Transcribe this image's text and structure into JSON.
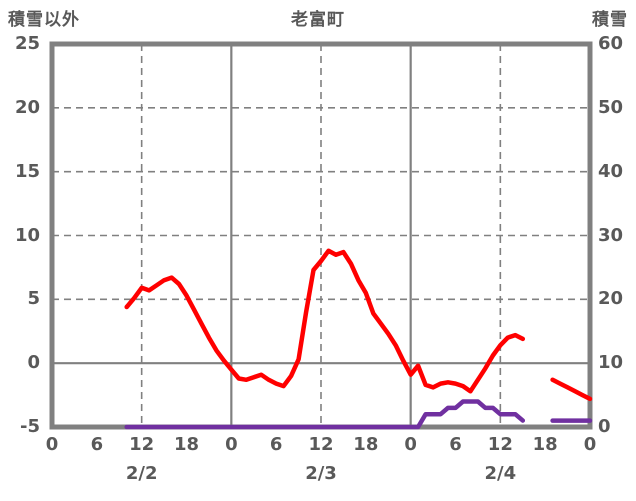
{
  "header": {
    "left_axis_label": "積雪以外",
    "title": "老富町",
    "right_axis_label": "積雪"
  },
  "colors": {
    "temp_line": "#ff0000",
    "snow_line": "#7030a0",
    "grid": "#808080",
    "text": "#595959"
  },
  "chart_data": {
    "type": "line",
    "title": "老富町",
    "left_axis": {
      "label": "積雪以外",
      "min": -5,
      "max": 25,
      "ticks": [
        25,
        20,
        15,
        10,
        5,
        0,
        -5
      ]
    },
    "right_axis": {
      "label": "積雪",
      "min": 0,
      "max": 60,
      "ticks": [
        60,
        50,
        40,
        30,
        20,
        10,
        0
      ]
    },
    "x_hours_span": 72,
    "x_tick_hours": [
      0,
      6,
      12,
      18,
      24,
      30,
      36,
      42,
      48,
      54,
      60,
      66,
      72
    ],
    "x_tick_labels": [
      "0",
      "6",
      "12",
      "18",
      "0",
      "6",
      "12",
      "18",
      "0",
      "6",
      "12",
      "18",
      "0"
    ],
    "date_labels": [
      {
        "label": "2/2",
        "center_hour": 12
      },
      {
        "label": "2/3",
        "center_hour": 36
      },
      {
        "label": "2/4",
        "center_hour": 60
      }
    ],
    "grid": {
      "h_dashed_at_left_values": [
        20,
        15,
        10,
        5
      ],
      "h_solid_at_left_values": [
        0
      ],
      "v_dashed_at_hours": [
        12,
        36,
        60
      ],
      "v_solid_at_hours": [
        24,
        48
      ]
    },
    "series": [
      {
        "name": "積雪以外",
        "color": "#ff0000",
        "axis": "left",
        "step_hours": 1,
        "values": [
          null,
          null,
          null,
          null,
          null,
          null,
          null,
          null,
          null,
          null,
          4.4,
          5.1,
          5.9,
          5.7,
          6.1,
          6.5,
          6.7,
          6.2,
          5.3,
          4.2,
          3.1,
          2.0,
          1.0,
          0.2,
          -0.5,
          -1.2,
          -1.3,
          -1.1,
          -0.9,
          -1.3,
          -1.6,
          -1.8,
          -1.0,
          0.3,
          4.0,
          7.3,
          8.0,
          8.8,
          8.5,
          8.7,
          7.8,
          6.5,
          5.5,
          3.9,
          3.1,
          2.3,
          1.4,
          0.2,
          -0.9,
          -0.2,
          -1.7,
          -1.9,
          -1.6,
          -1.5,
          -1.6,
          -1.8,
          -2.2,
          -1.3,
          -0.4,
          0.6,
          1.4,
          2.0,
          2.2,
          1.9,
          null,
          null,
          null,
          -1.3,
          -1.6,
          -1.9,
          -2.2,
          -2.5,
          -2.8
        ]
      },
      {
        "name": "積雪",
        "color": "#7030a0",
        "axis": "right",
        "step_hours": 1,
        "values": [
          null,
          null,
          null,
          null,
          null,
          null,
          null,
          null,
          null,
          null,
          0,
          0,
          0,
          0,
          0,
          0,
          0,
          0,
          0,
          0,
          0,
          0,
          0,
          0,
          0,
          0,
          0,
          0,
          0,
          0,
          0,
          0,
          0,
          0,
          0,
          0,
          0,
          0,
          0,
          0,
          0,
          0,
          0,
          0,
          0,
          0,
          0,
          0,
          0,
          0,
          2,
          2,
          2,
          3,
          3,
          4,
          4,
          4,
          3,
          3,
          2,
          2,
          2,
          1,
          null,
          null,
          null,
          1,
          1,
          1,
          1,
          1,
          1
        ]
      }
    ]
  }
}
